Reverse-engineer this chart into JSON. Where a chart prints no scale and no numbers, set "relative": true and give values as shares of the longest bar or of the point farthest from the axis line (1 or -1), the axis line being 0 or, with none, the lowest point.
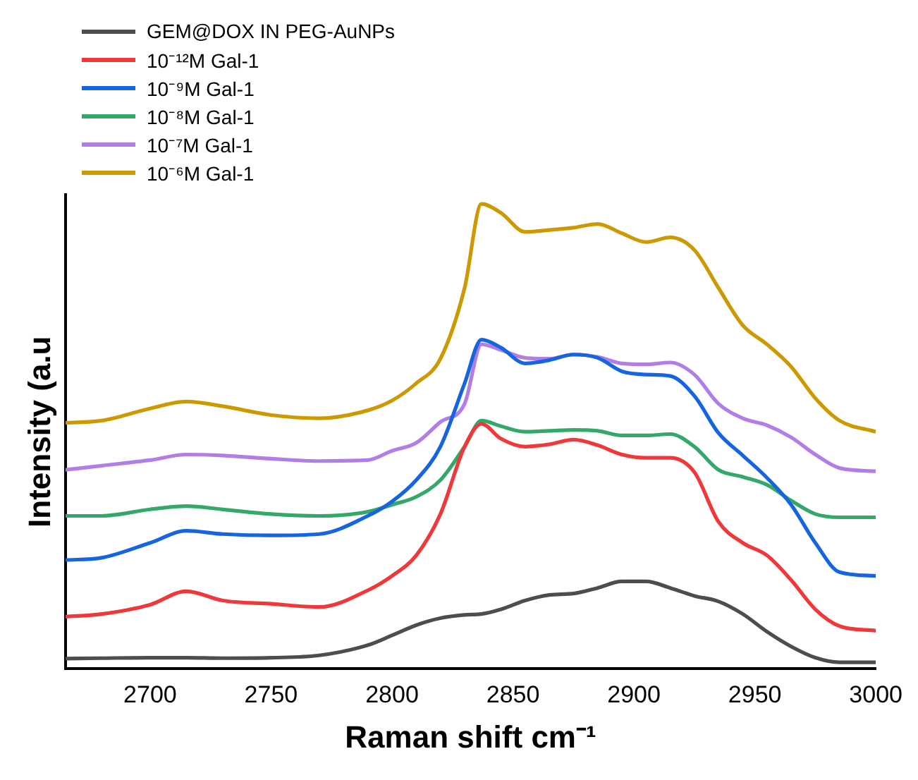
{
  "chart_data": {
    "type": "line",
    "xlabel": "Raman shift cm⁻¹",
    "ylabel": "Intensity (a.u",
    "relative": true,
    "legend": "top left",
    "grid": false,
    "marker": "none",
    "line_style": "solid",
    "x": [
      2665,
      2680,
      2700,
      2715,
      2730,
      2750,
      2770,
      2790,
      2800,
      2810,
      2820,
      2830,
      2837,
      2845,
      2855,
      2865,
      2875,
      2885,
      2895,
      2905,
      2915,
      2925,
      2935,
      2945,
      2955,
      2965,
      2975,
      2985,
      3000
    ],
    "xlim": [
      2665,
      3000
    ],
    "xticks": [
      2700,
      2750,
      2800,
      2850,
      2900,
      2950,
      3000
    ],
    "series": [
      {
        "name": "GEM@DOX IN PEG-AuNPs",
        "color": "#4d4d4d",
        "values": [
          0.022,
          0.023,
          0.024,
          0.024,
          0.023,
          0.024,
          0.029,
          0.051,
          0.072,
          0.094,
          0.109,
          0.116,
          0.118,
          0.128,
          0.147,
          0.159,
          0.162,
          0.174,
          0.188,
          0.188,
          0.174,
          0.157,
          0.145,
          0.118,
          0.08,
          0.048,
          0.024,
          0.014,
          0.014
        ]
      },
      {
        "name": "10⁻¹²M Gal-1",
        "color": "#f0373a",
        "values": [
          0.112,
          0.118,
          0.138,
          0.167,
          0.147,
          0.14,
          0.133,
          0.169,
          0.2,
          0.244,
          0.333,
          0.478,
          0.527,
          0.495,
          0.478,
          0.483,
          0.493,
          0.481,
          0.461,
          0.454,
          0.454,
          0.423,
          0.316,
          0.271,
          0.244,
          0.191,
          0.128,
          0.092,
          0.082
        ]
      },
      {
        "name": "10⁻⁹M Gal-1",
        "color": "#1565e0",
        "values": [
          0.234,
          0.239,
          0.271,
          0.297,
          0.29,
          0.287,
          0.29,
          0.329,
          0.36,
          0.406,
          0.478,
          0.614,
          0.708,
          0.691,
          0.657,
          0.664,
          0.676,
          0.669,
          0.64,
          0.633,
          0.63,
          0.587,
          0.507,
          0.459,
          0.411,
          0.353,
          0.271,
          0.208,
          0.2
        ]
      },
      {
        "name": "10⁻⁸M Gal-1",
        "color": "#33a868",
        "values": [
          0.329,
          0.329,
          0.343,
          0.35,
          0.343,
          0.333,
          0.329,
          0.338,
          0.353,
          0.37,
          0.406,
          0.478,
          0.534,
          0.522,
          0.51,
          0.512,
          0.514,
          0.512,
          0.502,
          0.502,
          0.505,
          0.478,
          0.428,
          0.413,
          0.396,
          0.362,
          0.333,
          0.326,
          0.326
        ]
      },
      {
        "name": "10⁻⁷M Gal-1",
        "color": "#b07ee6",
        "values": [
          0.428,
          0.437,
          0.449,
          0.461,
          0.459,
          0.452,
          0.447,
          0.449,
          0.469,
          0.486,
          0.531,
          0.57,
          0.698,
          0.686,
          0.669,
          0.667,
          0.676,
          0.671,
          0.657,
          0.655,
          0.659,
          0.633,
          0.57,
          0.539,
          0.524,
          0.498,
          0.461,
          0.432,
          0.425
        ]
      },
      {
        "name": "10⁻⁶M Gal-1",
        "color": "#cc9a00",
        "values": [
          0.529,
          0.534,
          0.56,
          0.575,
          0.565,
          0.546,
          0.539,
          0.556,
          0.577,
          0.614,
          0.667,
          0.819,
          1.0,
          0.981,
          0.94,
          0.944,
          0.949,
          0.957,
          0.937,
          0.918,
          0.928,
          0.901,
          0.819,
          0.739,
          0.698,
          0.65,
          0.582,
          0.534,
          0.51
        ]
      }
    ]
  }
}
